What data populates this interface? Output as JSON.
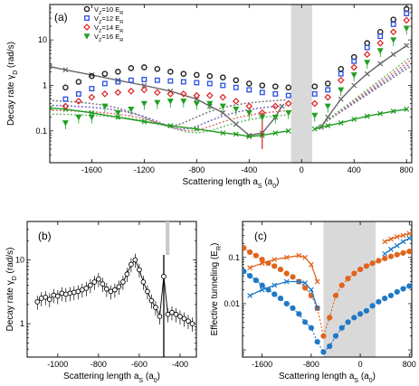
{
  "chart_data": [
    {
      "panel": "(a)",
      "type": "scatter",
      "xlabel": "Scattering length a_S (a_0)",
      "ylabel": "Decay rate γ_D (rad/s)",
      "xlim": [
        -1920,
        840
      ],
      "ylim": [
        0.02,
        60
      ],
      "yscale": "log",
      "xticks": [
        -1600,
        -1200,
        -800,
        -400,
        0,
        400,
        800
      ],
      "yticks": [
        0.1,
        1,
        10
      ],
      "ytick_labels": [
        "0.1",
        "1",
        "10"
      ],
      "shaded_band": [
        -80,
        80
      ],
      "legend": {
        "placement": "top-left",
        "entries": [
          {
            "label": "V_Z=10 E_R",
            "marker": "circle",
            "color": "#222222"
          },
          {
            "label": "V_Z=12 E_R",
            "marker": "square",
            "color": "#2a50e0"
          },
          {
            "label": "V_Z=14 E_R",
            "marker": "diamond",
            "color": "#e02020"
          },
          {
            "label": "V_Z=16 E_R",
            "marker": "triangle-down",
            "color": "#20a020"
          }
        ]
      },
      "series": [
        {
          "name": "V_Z=10 E_R",
          "color": "#222222",
          "marker": "circle",
          "x": [
            -1800,
            -1700,
            -1600,
            -1500,
            -1400,
            -1300,
            -1200,
            -1100,
            -1000,
            -900,
            -800,
            -700,
            -600,
            -500,
            -400,
            -300,
            -200,
            -100,
            100,
            200,
            300,
            400,
            500,
            600,
            700,
            800
          ],
          "y": [
            0.9,
            1.2,
            1.6,
            1.8,
            2.0,
            2.4,
            2.5,
            2.3,
            2.0,
            1.8,
            1.7,
            1.6,
            1.5,
            1.3,
            1.1,
            1.0,
            0.95,
            0.9,
            0.95,
            1.1,
            2.3,
            4.2,
            8.5,
            15,
            28,
            48
          ]
        },
        {
          "name": "V_Z=12 E_R",
          "color": "#2a50e0",
          "marker": "square",
          "x": [
            -1800,
            -1700,
            -1600,
            -1500,
            -1400,
            -1300,
            -1200,
            -1100,
            -1000,
            -900,
            -800,
            -700,
            -600,
            -500,
            -400,
            -300,
            -200,
            -100,
            100,
            200,
            300,
            400,
            500,
            600,
            700,
            800
          ],
          "y": [
            0.5,
            0.65,
            0.85,
            1.1,
            1.2,
            1.3,
            1.35,
            1.3,
            1.25,
            1.2,
            1.15,
            1.1,
            1.0,
            0.9,
            0.8,
            0.7,
            0.65,
            0.6,
            0.65,
            0.8,
            1.8,
            3.4,
            6.8,
            12,
            22,
            38
          ]
        },
        {
          "name": "V_Z=14 E_R",
          "color": "#e02020",
          "marker": "diamond",
          "x": [
            -1800,
            -1700,
            -1600,
            -1500,
            -1400,
            -1300,
            -1200,
            -1100,
            -1000,
            -900,
            -800,
            -700,
            -600,
            -500,
            -400,
            -300,
            -200,
            -100,
            100,
            200,
            300,
            400,
            500,
            600,
            700,
            800
          ],
          "y": [
            0.35,
            0.45,
            0.55,
            0.65,
            0.7,
            0.75,
            0.8,
            0.7,
            0.65,
            0.65,
            0.6,
            0.6,
            0.55,
            0.45,
            0.35,
            0.25,
            0.35,
            0.4,
            0.4,
            0.55,
            1.3,
            2.5,
            4.8,
            8.5,
            15,
            27
          ]
        },
        {
          "name": "V_Z=16 E_R",
          "color": "#20a020",
          "marker": "triangle-down",
          "x": [
            -1800,
            -1700,
            -1600,
            -1500,
            -1400,
            -1300,
            -1200,
            -1100,
            -1000,
            -900,
            -800,
            -700,
            -600,
            -500,
            -400,
            -300,
            -200,
            -100,
            100,
            200,
            300,
            400,
            500,
            600,
            700,
            800
          ],
          "y": [
            0.15,
            0.2,
            0.2,
            0.35,
            0.25,
            0.3,
            0.4,
            0.42,
            0.45,
            0.45,
            0.4,
            0.4,
            0.35,
            0.3,
            0.25,
            0.2,
            0.2,
            0.25,
            0.22,
            0.35,
            0.8,
            1.7,
            3.2,
            5.8,
            10,
            18
          ]
        },
        {
          "name": "gray model",
          "color": "#666666",
          "marker": "x",
          "x": [
            -1920,
            -1800,
            -1600,
            -1400,
            -1200,
            -1000,
            -800,
            -700,
            -600,
            -500,
            -400,
            -300,
            -200,
            -150,
            150,
            200,
            300,
            400,
            500,
            600,
            700,
            800
          ],
          "y": [
            2.6,
            2.2,
            1.7,
            1.3,
            1.0,
            0.75,
            0.5,
            0.35,
            0.25,
            0.14,
            0.08,
            0.09,
            0.2,
            0.35,
            0.12,
            0.2,
            0.5,
            1.0,
            1.8,
            3.0,
            4.8,
            7.5
          ]
        },
        {
          "name": "green model",
          "color": "#1e9a1e",
          "marker": "x",
          "x": [
            -1920,
            -1800,
            -1600,
            -1400,
            -1200,
            -1000,
            -800,
            -600,
            -500,
            -400,
            -300,
            -200,
            -100,
            100,
            200,
            300,
            400,
            500,
            600,
            700,
            800
          ],
          "y": [
            0.32,
            0.3,
            0.25,
            0.2,
            0.16,
            0.13,
            0.11,
            0.09,
            0.085,
            0.075,
            0.08,
            0.09,
            0.1,
            0.11,
            0.13,
            0.15,
            0.18,
            0.21,
            0.24,
            0.27,
            0.3
          ]
        }
      ]
    },
    {
      "panel": "(b)",
      "type": "line",
      "xlabel": "Scattering length a_S (a_0)",
      "ylabel": "Decay rate γ_D (rad/s)",
      "xlim": [
        -1150,
        -320
      ],
      "ylim": [
        0.3,
        40
      ],
      "yscale": "log",
      "xticks": [
        -1000,
        -800,
        -600,
        -400
      ],
      "yticks": [
        1,
        10
      ],
      "ytick_labels": [
        "1",
        "10"
      ],
      "x": [
        -1100,
        -1080,
        -1060,
        -1040,
        -1020,
        -1000,
        -980,
        -960,
        -940,
        -920,
        -900,
        -880,
        -860,
        -840,
        -820,
        -800,
        -780,
        -760,
        -740,
        -720,
        -700,
        -680,
        -660,
        -640,
        -620,
        -600,
        -580,
        -560,
        -540,
        -520,
        -500,
        -480,
        -460,
        -440,
        -420,
        -400,
        -380,
        -360,
        -340
      ],
      "y": [
        2.2,
        2.5,
        2.6,
        2.4,
        2.8,
        2.7,
        3.0,
        2.9,
        3.0,
        3.1,
        3.2,
        3.4,
        3.6,
        4.0,
        4.5,
        5.0,
        4.2,
        3.5,
        3.2,
        3.4,
        3.8,
        4.5,
        6.0,
        8.5,
        10.0,
        7.0,
        4.5,
        3.2,
        2.3,
        1.8,
        1.3,
        5.5,
        1.4,
        1.5,
        1.4,
        1.3,
        1.2,
        1.1,
        1.0
      ]
    },
    {
      "panel": "(c)",
      "type": "scatter",
      "xlabel": "Scattering length a_S (a_0)",
      "ylabel": "Effective tunneling (E_R)",
      "xlim": [
        -1920,
        840
      ],
      "ylim": [
        0.0007,
        0.6
      ],
      "yscale": "log",
      "xticks": [
        -1600,
        -800,
        0,
        800
      ],
      "yticks": [
        0.01,
        0.1
      ],
      "ytick_labels": [
        "0.01",
        "0.1"
      ],
      "shaded_band": [
        -600,
        250
      ],
      "series": [
        {
          "name": "orange dotted",
          "color": "#e0641c",
          "marker": "circle",
          "x": [
            -1900,
            -1800,
            -1700,
            -1600,
            -1500,
            -1400,
            -1300,
            -1200,
            -1100,
            -1000,
            -900,
            -800,
            -700,
            -600,
            -500,
            -400,
            -300,
            -200,
            -100,
            0,
            100,
            200,
            300,
            400,
            500,
            600,
            700,
            800
          ],
          "y": [
            0.16,
            0.13,
            0.11,
            0.09,
            0.075,
            0.065,
            0.055,
            0.045,
            0.038,
            0.03,
            0.022,
            0.015,
            0.008,
            0.002,
            0.005,
            0.015,
            0.025,
            0.035,
            0.045,
            0.055,
            0.065,
            0.075,
            0.085,
            0.095,
            0.105,
            0.115,
            0.125,
            0.135
          ]
        },
        {
          "name": "blue dotted",
          "color": "#1e78c8",
          "marker": "circle",
          "x": [
            -1900,
            -1800,
            -1700,
            -1600,
            -1500,
            -1400,
            -1300,
            -1200,
            -1100,
            -1000,
            -900,
            -800,
            -700,
            -600,
            -500,
            -400,
            -300,
            -200,
            -100,
            0,
            100,
            200,
            300,
            400,
            500,
            600,
            700,
            800
          ],
          "y": [
            0.05,
            0.04,
            0.032,
            0.025,
            0.02,
            0.016,
            0.013,
            0.01,
            0.008,
            0.006,
            0.004,
            0.003,
            0.0015,
            0.0009,
            0.0012,
            0.002,
            0.003,
            0.004,
            0.005,
            0.006,
            0.007,
            0.009,
            0.011,
            0.013,
            0.015,
            0.018,
            0.021,
            0.024
          ]
        },
        {
          "name": "orange crosses",
          "color": "#e0641c",
          "marker": "x",
          "x": [
            -1800,
            -1600,
            -1400,
            -1200,
            -1000,
            -900,
            -800,
            -700,
            400,
            500,
            600,
            700,
            800
          ],
          "y": [
            0.06,
            0.075,
            0.09,
            0.1,
            0.11,
            0.1,
            0.07,
            0.03,
            0.22,
            0.25,
            0.28,
            0.3,
            0.33
          ]
        },
        {
          "name": "blue crosses",
          "color": "#1e78c8",
          "marker": "x",
          "x": [
            -1800,
            -1600,
            -1400,
            -1200,
            -1000,
            -900,
            -800,
            -700,
            400,
            500,
            600,
            700,
            800
          ],
          "y": [
            0.015,
            0.02,
            0.025,
            0.03,
            0.03,
            0.028,
            0.02,
            0.008,
            0.12,
            0.15,
            0.18,
            0.22,
            0.26
          ]
        }
      ]
    }
  ]
}
